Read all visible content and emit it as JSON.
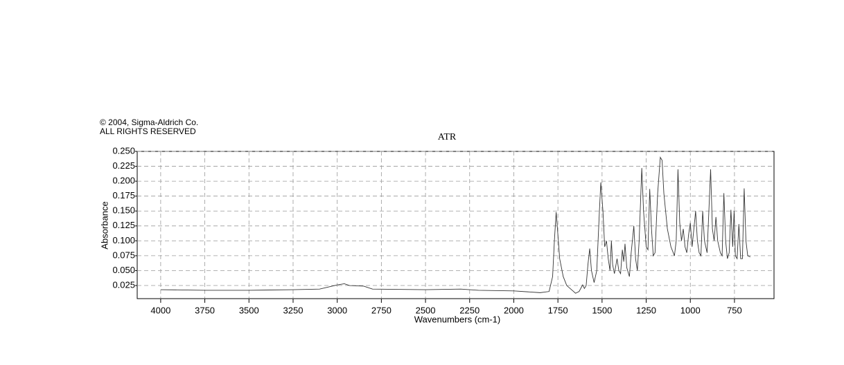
{
  "chart_data": {
    "type": "line",
    "title": "ATR",
    "copyright": [
      "© 2004, Sigma-Aldrich Co.",
      "ALL RIGHTS RESERVED"
    ],
    "xlabel": "Wavenumbers (cm-1)",
    "ylabel": "Absorbance",
    "color": "#333333",
    "grid": true,
    "xlim": [
      4133,
      526
    ],
    "ylim": [
      0.003,
      0.25
    ],
    "xticks": [
      4000,
      3750,
      3500,
      3250,
      3000,
      2750,
      2500,
      2250,
      2000,
      1750,
      1500,
      1250,
      1000,
      750
    ],
    "yticks": [
      0.025,
      {
        "value": 0.05,
        "label": "0.050"
      },
      0.075,
      {
        "value": 0.1,
        "label": "0.100"
      },
      0.125,
      {
        "value": 0.15,
        "label": "0.150"
      },
      0.175,
      {
        "value": 0.2,
        "label": "0.200"
      },
      0.225,
      {
        "value": 0.25,
        "label": "0.250"
      }
    ],
    "x": [
      4000,
      3750,
      3500,
      3250,
      3100,
      3000,
      2960,
      2930,
      2850,
      2800,
      2500,
      2300,
      2200,
      2000,
      1850,
      1800,
      1780,
      1770,
      1760,
      1750,
      1740,
      1720,
      1700,
      1650,
      1630,
      1610,
      1600,
      1590,
      1580,
      1570,
      1560,
      1545,
      1530,
      1515,
      1507,
      1495,
      1485,
      1475,
      1465,
      1455,
      1447,
      1440,
      1430,
      1415,
      1405,
      1395,
      1385,
      1377,
      1370,
      1360,
      1345,
      1335,
      1320,
      1310,
      1300,
      1290,
      1275,
      1265,
      1250,
      1240,
      1230,
      1220,
      1210,
      1200,
      1185,
      1170,
      1160,
      1150,
      1130,
      1110,
      1090,
      1080,
      1070,
      1060,
      1050,
      1040,
      1030,
      1020,
      1010,
      1000,
      990,
      980,
      970,
      960,
      950,
      940,
      930,
      920,
      905,
      895,
      885,
      875,
      865,
      855,
      845,
      830,
      820,
      810,
      800,
      790,
      780,
      770,
      760,
      752,
      745,
      735,
      725,
      715,
      705,
      695,
      685,
      675,
      660
    ],
    "values": [
      0.018,
      0.017,
      0.017,
      0.018,
      0.019,
      0.026,
      0.028,
      0.025,
      0.024,
      0.019,
      0.018,
      0.019,
      0.017,
      0.016,
      0.013,
      0.015,
      0.04,
      0.1,
      0.148,
      0.11,
      0.07,
      0.04,
      0.025,
      0.012,
      0.015,
      0.026,
      0.02,
      0.025,
      0.06,
      0.087,
      0.05,
      0.03,
      0.05,
      0.15,
      0.198,
      0.15,
      0.09,
      0.1,
      0.07,
      0.05,
      0.1,
      0.06,
      0.045,
      0.07,
      0.05,
      0.045,
      0.085,
      0.065,
      0.095,
      0.055,
      0.04,
      0.08,
      0.125,
      0.07,
      0.05,
      0.1,
      0.222,
      0.15,
      0.09,
      0.085,
      0.187,
      0.12,
      0.075,
      0.08,
      0.18,
      0.24,
      0.235,
      0.18,
      0.12,
      0.09,
      0.075,
      0.1,
      0.22,
      0.13,
      0.1,
      0.12,
      0.09,
      0.08,
      0.11,
      0.13,
      0.09,
      0.12,
      0.15,
      0.1,
      0.08,
      0.075,
      0.15,
      0.1,
      0.08,
      0.15,
      0.22,
      0.12,
      0.1,
      0.14,
      0.1,
      0.08,
      0.075,
      0.18,
      0.1,
      0.07,
      0.08,
      0.152,
      0.09,
      0.15,
      0.075,
      0.07,
      0.128,
      0.07,
      0.07,
      0.188,
      0.1,
      0.075,
      0.073
    ]
  }
}
